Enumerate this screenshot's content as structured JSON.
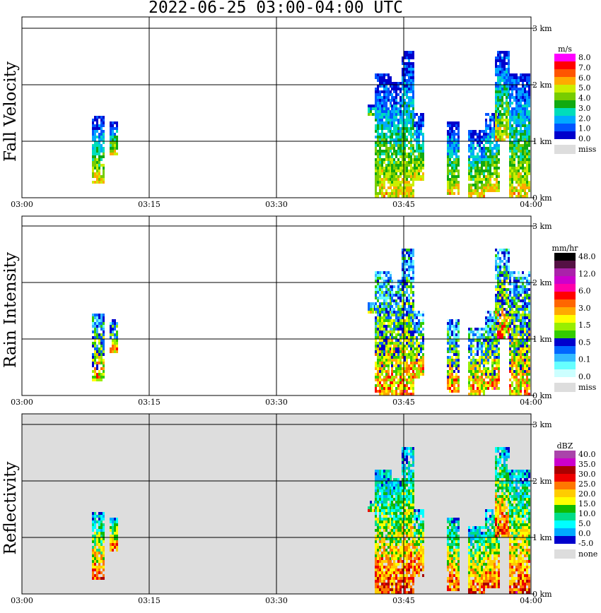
{
  "title": "2022-06-25   03:00-04:00 UTC",
  "chart_data": [
    {
      "type": "heatmap",
      "ylabel": "Fall Velocity",
      "x_ticks": [
        "03:00",
        "03:15",
        "03:30",
        "03:45",
        "04:00"
      ],
      "y_ticks": [
        "0 km",
        "1 km",
        "2 km",
        "3 km"
      ],
      "colorbar": {
        "unit": "m/s",
        "labels": [
          "8.0",
          "7.0",
          "6.0",
          "5.0",
          "4.0",
          "3.0",
          "2.0",
          "1.0",
          "0.0"
        ],
        "colors": [
          "#ff00ff",
          "#ff0000",
          "#ff5500",
          "#ffaa00",
          "#ccee00",
          "#77cc00",
          "#11aa11",
          "#00ddbb",
          "#00aaff",
          "#0055ff",
          "#0000cc"
        ],
        "miss_label": "miss",
        "miss_color": "#dddddd"
      },
      "background": "#ffffff"
    },
    {
      "type": "heatmap",
      "ylabel": "Rain Intensity",
      "x_ticks": [
        "03:00",
        "03:15",
        "03:30",
        "03:45",
        "04:00"
      ],
      "y_ticks": [
        "0 km",
        "1 km",
        "2 km",
        "3 km"
      ],
      "colorbar": {
        "unit": "mm/hr",
        "labels": [
          "48.0",
          "12.0",
          "6.0",
          "3.0",
          "1.5",
          "0.5",
          "0.1",
          "0.0"
        ],
        "colors": [
          "#000000",
          "#551144",
          "#aa22aa",
          "#cc00cc",
          "#ff00aa",
          "#ff0000",
          "#ff6600",
          "#ffaa00",
          "#ffff00",
          "#99ee00",
          "#33cc00",
          "#0000cc",
          "#0066ff",
          "#33bbff",
          "#66ffff",
          "#ccffff"
        ],
        "miss_label": "miss",
        "miss_color": "#dddddd"
      },
      "background": "#ffffff"
    },
    {
      "type": "heatmap",
      "ylabel": "Reflectivity",
      "x_ticks": [
        "03:00",
        "03:15",
        "03:30",
        "03:45",
        "04:00"
      ],
      "y_ticks": [
        "0 km",
        "1 km",
        "2 km",
        "3 km"
      ],
      "colorbar": {
        "unit": "dBZ",
        "labels": [
          "40.0",
          "35.0",
          "30.0",
          "25.0",
          "20.0",
          "15.0",
          "10.0",
          "5.0",
          "0.0",
          "-5.0"
        ],
        "colors": [
          "#aa44aa",
          "#cc00cc",
          "#aa0000",
          "#ee0000",
          "#ff7700",
          "#ffcc00",
          "#ffff00",
          "#11bb00",
          "#00dd88",
          "#00ffff",
          "#00aaff",
          "#0000cc"
        ],
        "miss_label": "none",
        "miss_color": "#dddddd"
      },
      "background": "#dddddd"
    }
  ]
}
